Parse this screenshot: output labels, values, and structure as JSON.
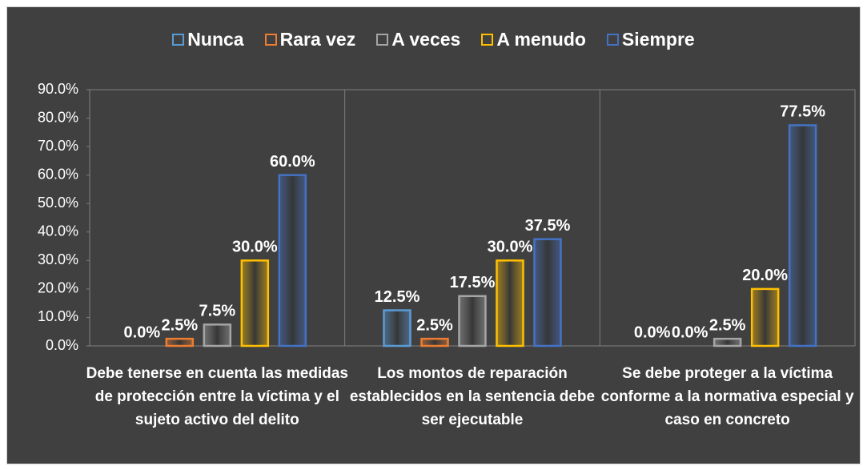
{
  "chart_data": {
    "type": "bar",
    "categories": [
      "Debe tenerse en cuenta las medidas de protección entre la víctima y el sujeto activo del delito",
      "Los montos de reparación establecidos en la sentencia debe ser ejecutable",
      "Se debe proteger a la víctima conforme a la normativa especial y caso en concreto"
    ],
    "series": [
      {
        "name": "Nunca",
        "color": "#5b9bd5",
        "values": [
          0,
          12.5,
          0
        ],
        "value_labels": [
          "0.0%",
          "12.5%",
          "0.0%"
        ]
      },
      {
        "name": "Rara vez",
        "color": "#ed7d31",
        "values": [
          2.5,
          2.5,
          0
        ],
        "value_labels": [
          "2.5%",
          "2.5%",
          "0.0%"
        ]
      },
      {
        "name": "A veces",
        "color": "#a5a5a5",
        "values": [
          7.5,
          17.5,
          2.5
        ],
        "value_labels": [
          "7.5%",
          "17.5%",
          "2.5%"
        ]
      },
      {
        "name": "A menudo",
        "color": "#ffc000",
        "values": [
          30,
          30,
          20
        ],
        "value_labels": [
          "30.0%",
          "30.0%",
          "20.0%"
        ]
      },
      {
        "name": "Siempre",
        "color": "#4472c4",
        "values": [
          60,
          37.5,
          77.5
        ],
        "value_labels": [
          "60.0%",
          "37.5%",
          "77.5%"
        ]
      }
    ],
    "ylim": [
      0,
      90
    ],
    "yticks": [
      {
        "value": 0,
        "label": "0.0%"
      },
      {
        "value": 10,
        "label": "10.0%"
      },
      {
        "value": 20,
        "label": "20.0%"
      },
      {
        "value": 30,
        "label": "30.0%"
      },
      {
        "value": 40,
        "label": "40.0%"
      },
      {
        "value": 50,
        "label": "50.0%"
      },
      {
        "value": 60,
        "label": "60.0%"
      },
      {
        "value": 70,
        "label": "70.0%"
      },
      {
        "value": 80,
        "label": "80.0%"
      },
      {
        "value": 90,
        "label": "90.0%"
      }
    ],
    "legend": "top"
  }
}
